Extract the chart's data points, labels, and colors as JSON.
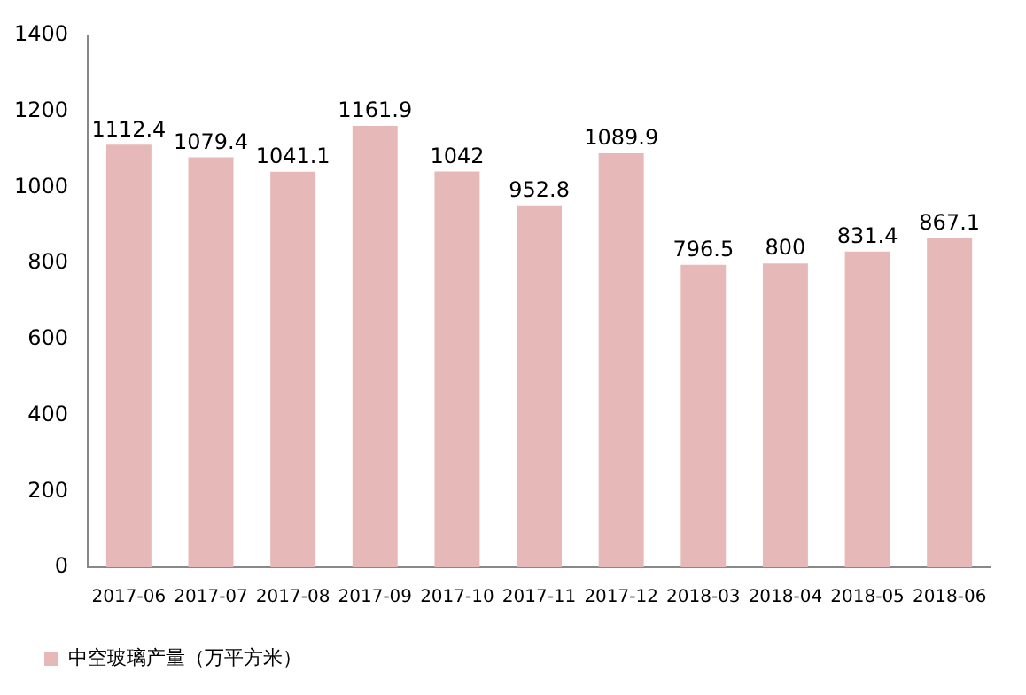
{
  "chart_data": {
    "type": "bar",
    "categories": [
      "2017-06",
      "2017-07",
      "2017-08",
      "2017-09",
      "2017-10",
      "2017-11",
      "2017-12",
      "2018-03",
      "2018-04",
      "2018-05",
      "2018-06"
    ],
    "series": [
      {
        "name": "中空玻璃产量（万平方米）",
        "color": "#e6b9b8",
        "values": [
          1112.4,
          1079.4,
          1041.1,
          1161.9,
          1042,
          952.8,
          1089.9,
          796.5,
          800,
          831.4,
          867.1
        ]
      }
    ],
    "ylim": [
      0,
      1400
    ],
    "yticks": [
      0,
      200,
      400,
      600,
      800,
      1000,
      1200,
      1400
    ],
    "grid": false,
    "legend": "bottom left",
    "data_labels": true
  }
}
